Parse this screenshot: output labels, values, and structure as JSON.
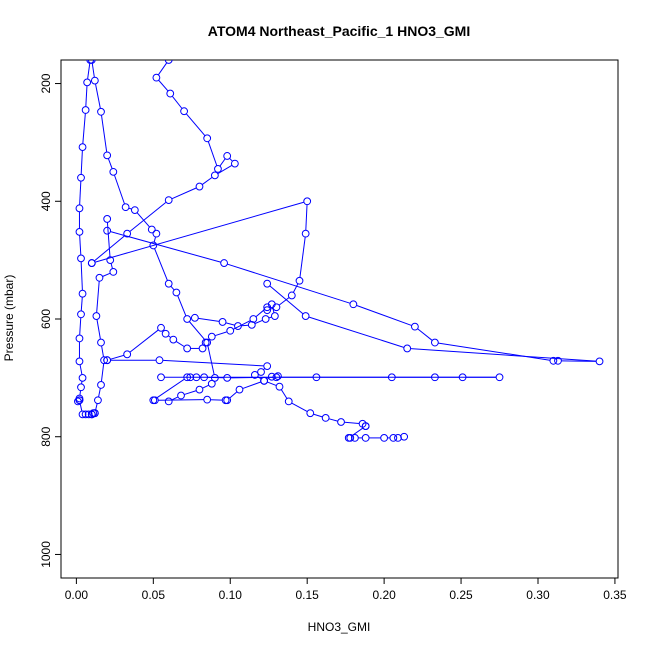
{
  "chart_data": {
    "type": "line",
    "title": "ATOM4 Northeast_Pacific_1 HNO3_GMI",
    "xlabel": "HNO3_GMI",
    "ylabel": "Pressure (mbar)",
    "xlim": [
      -0.01,
      0.352
    ],
    "ylim": [
      1040,
      160
    ],
    "y_reversed": true,
    "xticks": [
      0.0,
      0.05,
      0.1,
      0.15,
      0.2,
      0.25,
      0.3,
      0.35
    ],
    "xtick_labels": [
      "0.00",
      "0.05",
      "0.10",
      "0.15",
      "0.20",
      "0.25",
      "0.30",
      "0.35"
    ],
    "yticks": [
      200,
      400,
      600,
      800,
      1000
    ],
    "ytick_labels": [
      "200",
      "400",
      "600",
      "800",
      "1000"
    ],
    "grid": false,
    "color": "#0000ff",
    "marker": "open-circle",
    "series": [
      {
        "x": [
          0.009,
          0.007,
          0.006,
          0.004,
          0.003,
          0.002,
          0.002,
          0.003,
          0.004,
          0.003,
          0.002,
          0.002,
          0.004,
          0.003,
          0.002,
          0.002,
          0.001,
          0.002,
          0.004,
          0.006,
          0.008,
          0.01,
          0.011,
          0.012
        ],
        "y": [
          160,
          198,
          245,
          308,
          360,
          412,
          452,
          497,
          557,
          592,
          633,
          672,
          700,
          716,
          735,
          738,
          740,
          738,
          762,
          762,
          762,
          762,
          760,
          760
        ]
      },
      {
        "x": [
          0.01,
          0.012,
          0.016,
          0.02,
          0.024,
          0.032,
          0.038,
          0.049,
          0.052,
          0.05,
          0.06,
          0.065,
          0.072,
          0.085,
          0.09,
          0.088,
          0.08,
          0.068,
          0.06
        ],
        "y": [
          160,
          195,
          248,
          322,
          350,
          410,
          415,
          448,
          455,
          475,
          540,
          555,
          600,
          640,
          700,
          710,
          720,
          730,
          740
        ]
      },
      {
        "x": [
          0.06,
          0.052,
          0.061,
          0.07,
          0.085,
          0.092,
          0.098,
          0.103,
          0.09,
          0.08,
          0.06,
          0.033,
          0.01
        ],
        "y": [
          160,
          190,
          217,
          247,
          293,
          345,
          323,
          336,
          356,
          375,
          398,
          455,
          505
        ]
      },
      {
        "x": [
          0.02,
          0.022,
          0.024,
          0.015,
          0.013,
          0.016,
          0.018,
          0.016,
          0.014,
          0.012,
          0.01
        ],
        "y": [
          430,
          500,
          520,
          530,
          595,
          640,
          670,
          712,
          738,
          760,
          762
        ]
      },
      {
        "x": [
          0.01,
          0.15,
          0.149,
          0.145,
          0.14,
          0.13,
          0.124,
          0.127,
          0.129,
          0.123,
          0.114,
          0.105,
          0.095,
          0.077
        ],
        "y": [
          505,
          400,
          455,
          535,
          560,
          580,
          585,
          575,
          595,
          600,
          610,
          612,
          605,
          598
        ]
      },
      {
        "x": [
          0.02,
          0.096,
          0.18,
          0.22,
          0.233,
          0.31,
          0.313,
          0.34,
          0.215,
          0.149,
          0.124
        ],
        "y": [
          450,
          505,
          575,
          613,
          640,
          671,
          671,
          672,
          650,
          595,
          540
        ]
      },
      {
        "x": [
          0.124,
          0.115,
          0.1,
          0.088,
          0.084,
          0.082,
          0.072,
          0.063,
          0.058,
          0.055,
          0.033,
          0.02
        ],
        "y": [
          580,
          600,
          620,
          630,
          640,
          650,
          650,
          635,
          625,
          615,
          660,
          670
        ]
      },
      {
        "x": [
          0.02,
          0.054,
          0.124,
          0.12,
          0.116,
          0.122,
          0.132,
          0.138,
          0.152,
          0.162,
          0.172,
          0.186,
          0.188
        ],
        "y": [
          670,
          670,
          680,
          690,
          695,
          705,
          715,
          740,
          760,
          768,
          775,
          778,
          782
        ]
      },
      {
        "x": [
          0.188,
          0.177,
          0.178,
          0.181,
          0.188,
          0.2,
          0.206,
          0.209,
          0.213
        ],
        "y": [
          782,
          802,
          802,
          802,
          802,
          802,
          802,
          802,
          800
        ]
      },
      {
        "x": [
          0.05,
          0.072,
          0.074,
          0.078,
          0.083,
          0.098,
          0.13,
          0.156,
          0.205,
          0.233,
          0.251,
          0.275,
          0.055
        ],
        "y": [
          738,
          699,
          699,
          699,
          699,
          700,
          699,
          699,
          699,
          699,
          699,
          699,
          699
        ]
      },
      {
        "x": [
          0.051,
          0.085,
          0.097,
          0.098,
          0.106,
          0.122,
          0.127,
          0.131
        ],
        "y": [
          738,
          737,
          738,
          738,
          720,
          705,
          698,
          697
        ]
      }
    ]
  }
}
